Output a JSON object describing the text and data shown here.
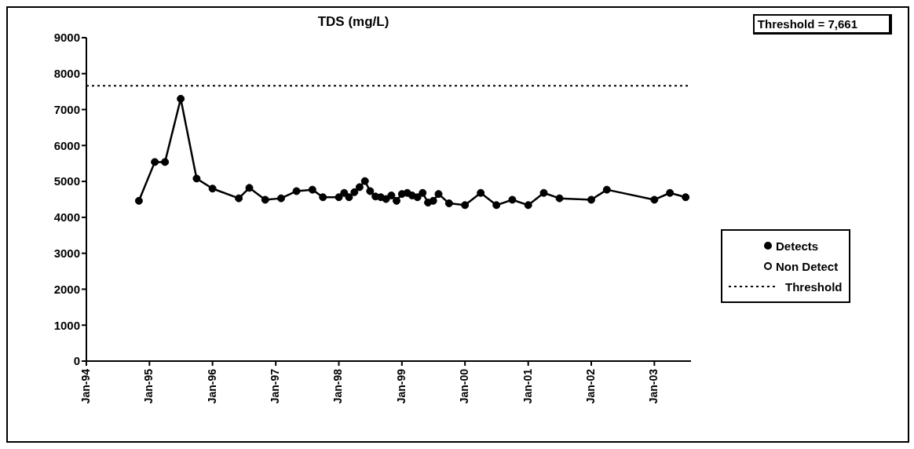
{
  "chart_data": {
    "type": "line",
    "title": "TDS (mg/L)",
    "x": [
      "1994-11",
      "1995-02",
      "1995-04",
      "1995-07",
      "1995-10",
      "1996-01",
      "1996-06",
      "1996-08",
      "1996-11",
      "1997-02",
      "1997-05",
      "1997-08",
      "1997-10",
      "1998-01",
      "1998-02",
      "1998-03",
      "1998-04",
      "1998-05",
      "1998-06",
      "1998-07",
      "1998-08",
      "1998-09",
      "1998-10",
      "1998-11",
      "1998-12",
      "1999-01",
      "1999-02",
      "1999-03",
      "1999-04",
      "1999-05",
      "1999-06",
      "1999-07",
      "1999-08",
      "1999-10",
      "2000-01",
      "2000-04",
      "2000-07",
      "2000-10",
      "2001-01",
      "2001-04",
      "2001-07",
      "2002-01",
      "2002-04",
      "2003-01",
      "2003-04",
      "2003-07"
    ],
    "series": [
      {
        "name": "Detects",
        "color": "#000000",
        "values": [
          4460,
          5540,
          5540,
          7300,
          5080,
          4800,
          4530,
          4820,
          4490,
          4530,
          4730,
          4770,
          4560,
          4560,
          4680,
          4560,
          4700,
          4840,
          5010,
          4730,
          4580,
          4560,
          4510,
          4610,
          4460,
          4650,
          4680,
          4610,
          4560,
          4680,
          4410,
          4460,
          4650,
          4390,
          4340,
          4680,
          4340,
          4490,
          4340,
          4680,
          4530,
          4490,
          4770,
          4490,
          4680,
          4560
        ]
      },
      {
        "name": "Non Detect",
        "type": "scatter",
        "color": "#000000",
        "values": [
          null,
          null,
          null,
          null,
          null,
          null,
          null,
          null,
          null,
          null,
          null,
          null,
          null,
          null,
          null,
          null,
          null,
          null,
          null,
          null,
          null,
          null,
          null,
          null,
          null,
          null,
          null,
          null,
          null,
          null,
          null,
          null,
          null,
          null,
          null,
          null,
          null,
          null,
          null,
          null,
          null,
          null,
          null,
          null,
          null,
          null
        ]
      }
    ],
    "ref_lines": [
      {
        "axis": "y",
        "value": 7661,
        "label": "Threshold",
        "color": "#000000",
        "line_style": "dotted"
      }
    ],
    "annotations": [
      "Threshold = 7,661"
    ],
    "xlim": [
      "1994-01",
      "2003-08"
    ],
    "xticks": [
      {
        "value": "1994-01",
        "label": "Jan-94"
      },
      {
        "value": "1995-01",
        "label": "Jan-95"
      },
      {
        "value": "1996-01",
        "label": "Jan-96"
      },
      {
        "value": "1997-01",
        "label": "Jan-97"
      },
      {
        "value": "1998-01",
        "label": "Jan-98"
      },
      {
        "value": "1999-01",
        "label": "Jan-99"
      },
      {
        "value": "2000-01",
        "label": "Jan-00"
      },
      {
        "value": "2001-01",
        "label": "Jan-01"
      },
      {
        "value": "2002-01",
        "label": "Jan-02"
      },
      {
        "value": "2003-01",
        "label": "Jan-03"
      }
    ],
    "ylim": [
      0,
      9000
    ],
    "yticks": [
      0,
      1000,
      2000,
      3000,
      4000,
      5000,
      6000,
      7000,
      8000,
      9000
    ],
    "marker": "circle",
    "grid": false,
    "legend": "right"
  }
}
